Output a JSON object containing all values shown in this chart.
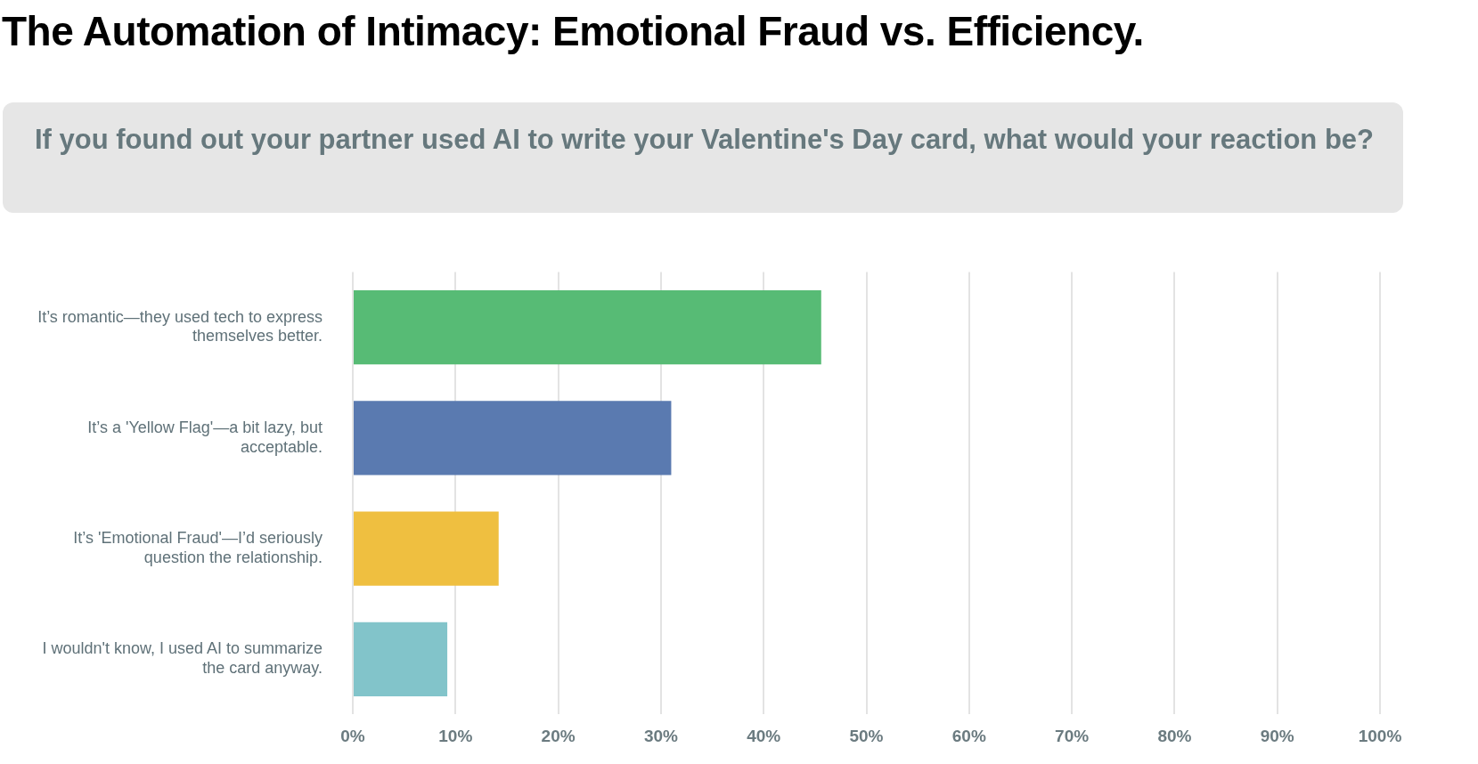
{
  "chart_data": {
    "type": "bar",
    "orientation": "horizontal",
    "title": "The Automation of Intimacy: Emotional Fraud vs. Efficiency.",
    "subtitle": "If you found out your partner used AI to write your Valentine's Day card, what would your reaction be?",
    "categories": [
      "It’s romantic—they used tech to express themselves better.",
      "It’s a 'Yellow Flag'—a bit lazy, but acceptable.",
      "It’s 'Emotional Fraud'—I’d seriously question the relationship.",
      "I wouldn't know, I used AI to summarize the card anyway."
    ],
    "values": [
      45.6,
      31.0,
      14.2,
      9.2
    ],
    "colors": [
      "#57bb75",
      "#5a7ab0",
      "#efbf40",
      "#82c4ca"
    ],
    "xlim": [
      0,
      100
    ],
    "xticks": [
      {
        "value": 0,
        "label": "0%"
      },
      {
        "value": 10,
        "label": "10%"
      },
      {
        "value": 20,
        "label": "20%"
      },
      {
        "value": 30,
        "label": "30%"
      },
      {
        "value": 40,
        "label": "40%"
      },
      {
        "value": 50,
        "label": "50%"
      },
      {
        "value": 60,
        "label": "60%"
      },
      {
        "value": 70,
        "label": "70%"
      },
      {
        "value": 80,
        "label": "80%"
      },
      {
        "value": 90,
        "label": "90%"
      },
      {
        "value": 100,
        "label": "100%"
      }
    ],
    "grid": "x",
    "legend": false
  }
}
